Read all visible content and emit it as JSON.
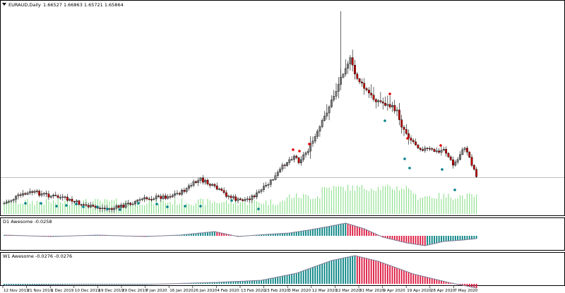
{
  "main_title": "EURAUD,Daily",
  "ohlc_readout": "1.66527 1.66863 1.65721 1.65864",
  "d1_title": "D1 Awesome -0.0258",
  "w1_title": "W1 Awesome -0.0276 -0.0276",
  "menu_icon": "triangle-down-icon",
  "colors": {
    "bull_body": "#7f7f7f",
    "bear_body": "#c40000",
    "wick": "#000000",
    "fractal_up": "#e00000",
    "fractal_down": "#00808a",
    "volume": "#7fdc7f",
    "ao_up": "#008080",
    "ao_down": "#dc143c",
    "ao_line": "#7f7f99",
    "bid_line": "#c0c0c0",
    "frame": "#000000"
  },
  "x_axis_dates": [
    "12 Nov 2019",
    "21 Nov 2019",
    "1 Dec 2019",
    "10 Dec 2019",
    "19 Dec 2019",
    "29 Dec 2019",
    "7 Jan 2020",
    "16 Jan 2020",
    "26 Jan 2020",
    "4 Feb 2020",
    "13 Feb 2020",
    "23 Feb 2020",
    "3 Mar 2020",
    "12 Mar 2020",
    "22 Mar 2020",
    "31 Mar 2020",
    "9 Apr 2020",
    "19 Apr 2020",
    "28 Apr 2020",
    "7 May 2020"
  ]
}
